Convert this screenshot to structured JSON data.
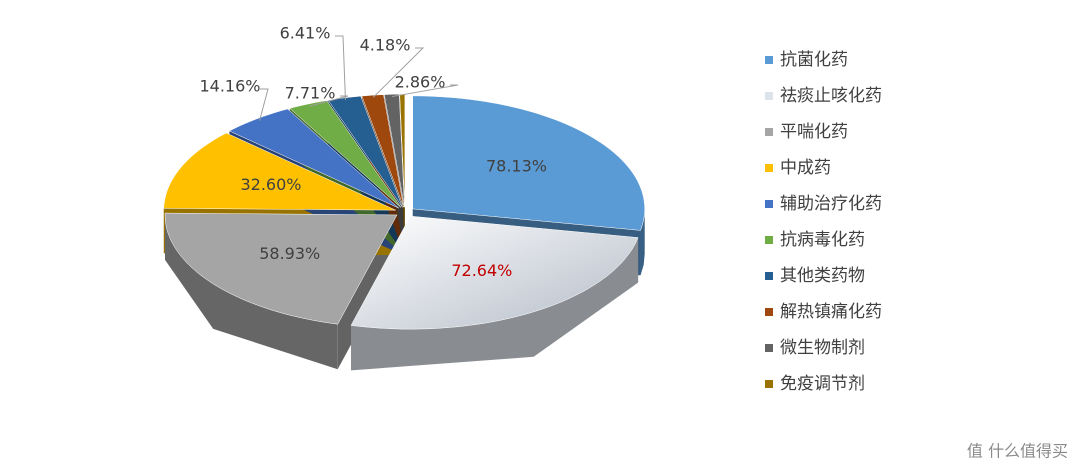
{
  "chart_data": {
    "type": "pie3d",
    "categories": [
      "抗菌化药",
      "祛痰止咳化药",
      "平喘化药",
      "中成药",
      "辅助治疗化药",
      "抗病毒化药",
      "其他类药物",
      "解热镇痛化药",
      "微生物制剂",
      "免疫调节剂"
    ],
    "values": [
      78.13,
      72.64,
      58.93,
      32.6,
      14.16,
      7.71,
      6.41,
      4.18,
      2.86,
      1
    ],
    "value_labels": [
      "78.13%",
      "72.64%",
      "58.93%",
      "32.60%",
      "14.16%",
      "7.71%",
      "6.41%",
      "4.18%",
      "2.86%",
      null
    ],
    "colors": [
      "#5b9bd5",
      "#dde3eb",
      "#a5a5a5",
      "#ffc000",
      "#4472c4",
      "#70ad47",
      "#255e91",
      "#9e480e",
      "#636363",
      "#997300"
    ],
    "legend": "right"
  },
  "watermark": "值 什么值得买"
}
